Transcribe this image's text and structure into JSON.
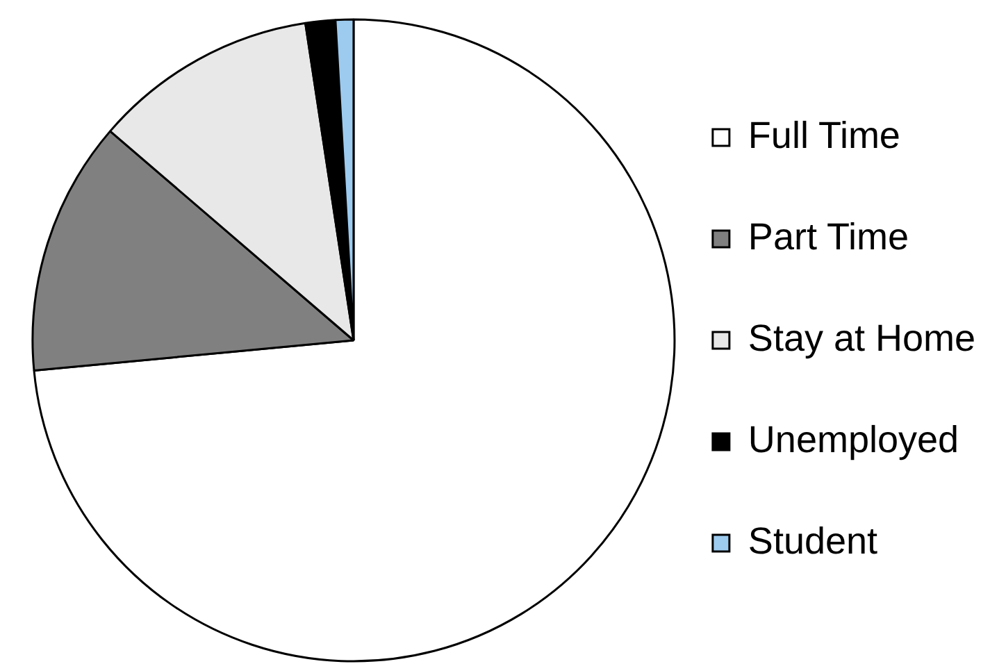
{
  "chart_data": {
    "type": "pie",
    "categories": [
      "Full Time",
      "Part Time",
      "Stay at Home",
      "Unemployed",
      "Student"
    ],
    "values": [
      73.5,
      12.8,
      11.3,
      1.5,
      0.9
    ],
    "colors": [
      "#ffffff",
      "#808080",
      "#e8e8e8",
      "#000000",
      "#9dcbef"
    ],
    "legend": "right"
  }
}
